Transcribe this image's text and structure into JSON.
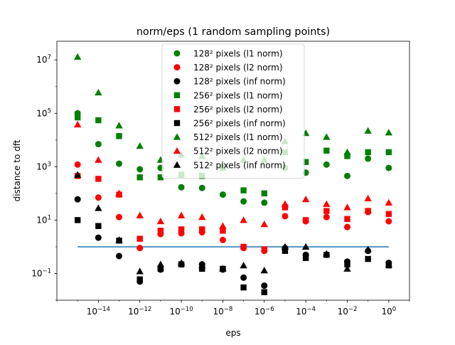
{
  "chart_data": {
    "type": "scatter",
    "title": "norm/eps (1 random sampling points)",
    "xlabel": "eps",
    "ylabel": "distance to dft",
    "x_scale": "log",
    "y_scale": "log",
    "xlim": [
      1e-16,
      10
    ],
    "ylim": [
      0.01,
      50000000
    ],
    "legend_position": "top-center",
    "grid": false,
    "x": [
      1e-15,
      1e-14,
      1e-13,
      1e-12,
      1e-11,
      1e-10,
      1e-09,
      1e-08,
      1e-07,
      1e-06,
      1e-05,
      0.0001,
      0.001,
      0.01,
      0.1,
      1
    ],
    "x_ticks": [
      {
        "value": 1e-14,
        "base": "10",
        "exp": "−14"
      },
      {
        "value": 1e-12,
        "base": "10",
        "exp": "−12"
      },
      {
        "value": 1e-10,
        "base": "10",
        "exp": "−10"
      },
      {
        "value": 1e-08,
        "base": "10",
        "exp": "−8"
      },
      {
        "value": 1e-06,
        "base": "10",
        "exp": "−6"
      },
      {
        "value": 0.0001,
        "base": "10",
        "exp": "−4"
      },
      {
        "value": 0.01,
        "base": "10",
        "exp": "−2"
      },
      {
        "value": 1,
        "base": "10",
        "exp": "0"
      }
    ],
    "y_ticks": [
      {
        "value": 0.1,
        "base": "10",
        "exp": "−1"
      },
      {
        "value": 10,
        "base": "10",
        "exp": "1"
      },
      {
        "value": 1000,
        "base": "10",
        "exp": "3"
      },
      {
        "value": 100000,
        "base": "10",
        "exp": "5"
      },
      {
        "value": 10000000,
        "base": "10",
        "exp": "7"
      }
    ],
    "reference_line": {
      "y": 1,
      "x_start": 1e-15,
      "x_end": 1,
      "color": "#1f77b4"
    },
    "series": [
      {
        "name": "128² pixels (l1 norm)",
        "color": "#008000",
        "marker": "circle",
        "values": [
          100000,
          7000,
          1300,
          800,
          900,
          170,
          160,
          90,
          50,
          45,
          900,
          600,
          1200,
          450,
          2000,
          900
        ]
      },
      {
        "name": "128² pixels (l2 norm)",
        "color": "#ff0000",
        "marker": "circle",
        "values": [
          1200,
          70,
          13,
          0.9,
          3,
          3.2,
          3.5,
          1.8,
          0.9,
          0.7,
          14,
          9,
          13,
          5.5,
          20,
          9
        ]
      },
      {
        "name": "128² pixels (inf norm)",
        "color": "#000000",
        "marker": "circle",
        "values": [
          60,
          2.2,
          0.45,
          0.05,
          0.14,
          0.22,
          0.22,
          0.14,
          0.07,
          0.035,
          0.9,
          0.5,
          0.5,
          0.28,
          0.7,
          0.25
        ]
      },
      {
        "name": "256² pixels (l1 norm)",
        "color": "#008000",
        "marker": "square",
        "values": [
          70000,
          55000,
          14000,
          400,
          400,
          500,
          450,
          900,
          130,
          100,
          3500,
          1500,
          4000,
          2500,
          3500,
          3500
        ]
      },
      {
        "name": "256² pixels (l2 norm)",
        "color": "#ff0000",
        "marker": "square",
        "values": [
          450,
          350,
          90,
          2,
          4,
          4.5,
          4.5,
          4,
          1,
          0.8,
          30,
          10,
          22,
          11,
          22,
          17
        ]
      },
      {
        "name": "256² pixels (inf norm)",
        "color": "#000000",
        "marker": "square",
        "values": [
          10,
          6,
          1.7,
          0.06,
          0.15,
          0.22,
          0.15,
          0.15,
          0.03,
          0.02,
          0.7,
          0.38,
          0.5,
          0.22,
          0.35,
          0.2
        ]
      },
      {
        "name": "512² pixels (l1 norm)",
        "color": "#008000",
        "marker": "triangle",
        "values": [
          13000000,
          600000,
          35000,
          6000,
          1800,
          2800,
          2500,
          1200,
          1800,
          1800,
          9000,
          18000,
          13000,
          3500,
          22000,
          19000
        ]
      },
      {
        "name": "512² pixels (l2 norm)",
        "color": "#ff0000",
        "marker": "triangle",
        "values": [
          38000,
          1800,
          100,
          15,
          9,
          15,
          13,
          6,
          10,
          7,
          40,
          60,
          40,
          30,
          65,
          45
        ]
      },
      {
        "name": "512² pixels (inf norm)",
        "color": "#000000",
        "marker": "triangle",
        "values": [
          500,
          28,
          1.8,
          0.12,
          0.22,
          0.25,
          0.2,
          0.15,
          0.2,
          0.13,
          1,
          1,
          0.55,
          0.15,
          0.8,
          0.22
        ]
      }
    ]
  }
}
